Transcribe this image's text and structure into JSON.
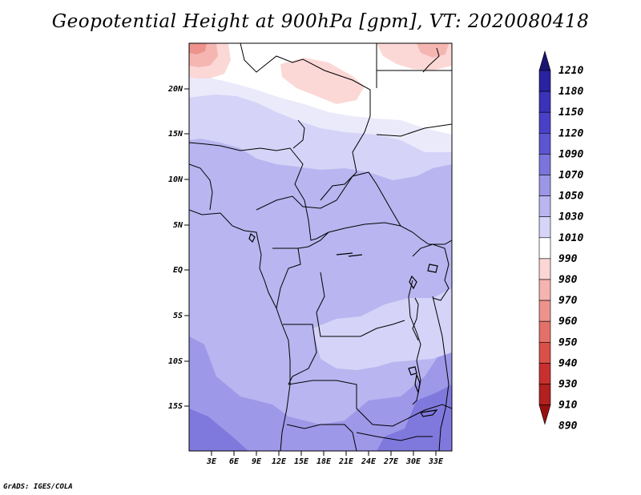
{
  "title": "Geopotential Height at 900hPa [gpm], VT: 2020080418",
  "credit": "GrADS: IGES/COLA",
  "map": {
    "lat_labels": [
      "20N",
      "15N",
      "10N",
      "5N",
      "EQ",
      "5S",
      "10S",
      "15S"
    ],
    "lon_labels": [
      "3E",
      "6E",
      "9E",
      "12E",
      "15E",
      "18E",
      "21E",
      "24E",
      "27E",
      "30E",
      "33E"
    ]
  },
  "colorbar": {
    "levels": [
      "1210",
      "1180",
      "1150",
      "1120",
      "1090",
      "1070",
      "1050",
      "1030",
      "1010",
      "990",
      "980",
      "970",
      "960",
      "950",
      "940",
      "930",
      "910",
      "890"
    ],
    "colors": [
      "#1a1470",
      "#2a22a0",
      "#3a32b8",
      "#4a40c8",
      "#5c55d2",
      "#7a74dc",
      "#9c96e6",
      "#bab6ef",
      "#d6d4f7",
      "#ffffff",
      "#fbd6d4",
      "#f5b4b0",
      "#ee928c",
      "#e4706a",
      "#d85048",
      "#c83030",
      "#b22020",
      "#961010"
    ]
  },
  "colors": {
    "fill_1050": "#b9b5f0",
    "fill_1030": "#d5d3f7",
    "fill_1070": "#9e98e8",
    "fill_1090": "#8079dd",
    "fill_990": "#ffffff",
    "fill_980": "#fbd8d6",
    "fill_970": "#f5b6b2"
  }
}
